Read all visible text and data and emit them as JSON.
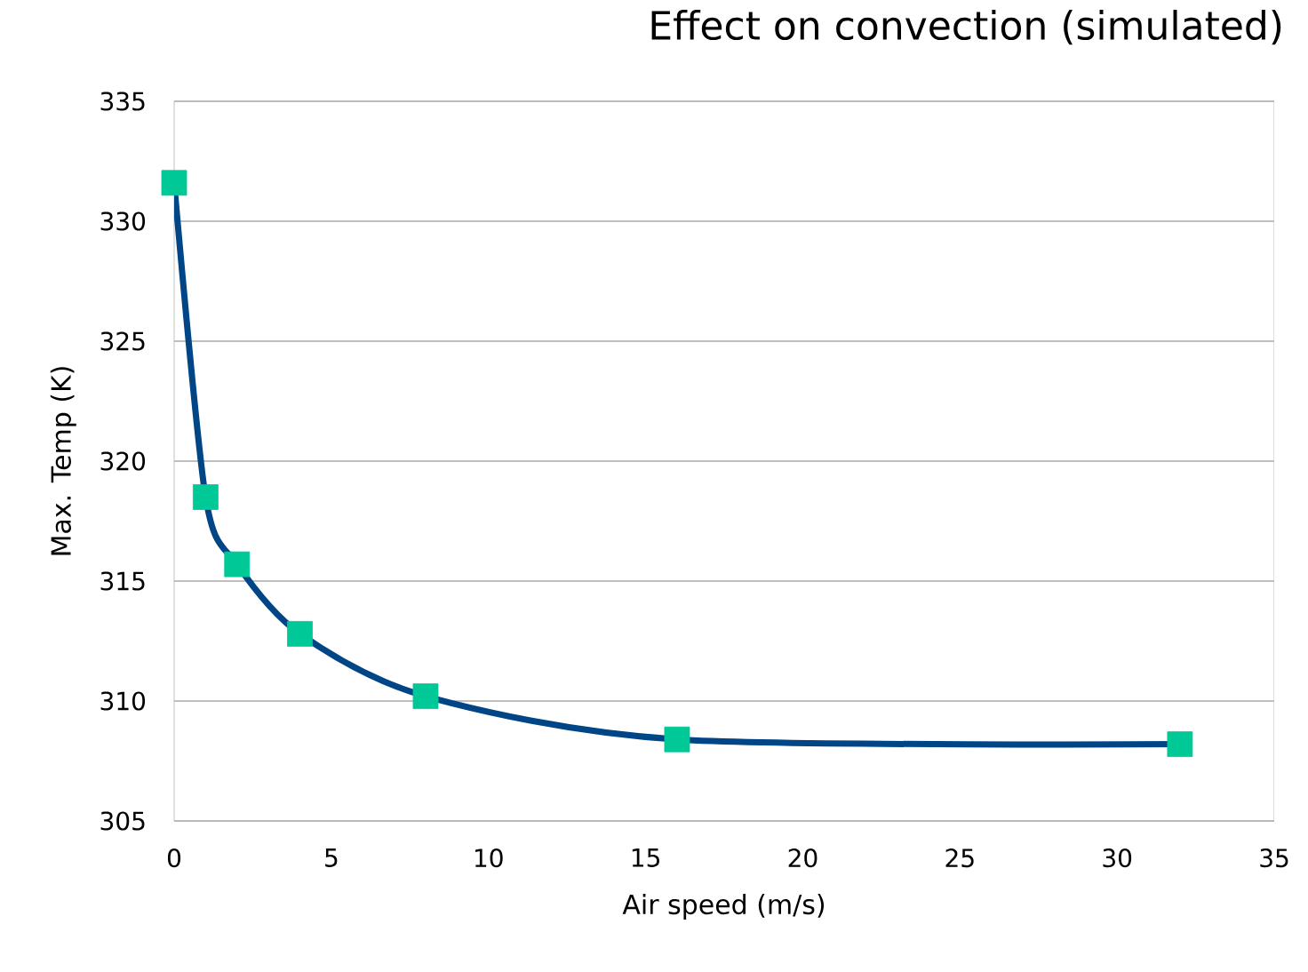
{
  "chart_data": {
    "type": "line",
    "title": "Effect on convection (simulated)",
    "xlabel": "Air speed (m/s)",
    "ylabel": "Max. Temp (K)",
    "x": [
      0,
      1,
      2,
      4,
      8,
      16,
      32
    ],
    "series": [
      {
        "color": "#004586",
        "colors": [
          "#00c896",
          "#00c896",
          "#00c896",
          "#00c896",
          "#00c896",
          "#00c896",
          "#00c896"
        ],
        "values": [
          331.6,
          318.5,
          315.7,
          312.8,
          310.2,
          308.4,
          308.2
        ]
      }
    ],
    "xlim": [
      0,
      35
    ],
    "xticks": [
      0,
      5,
      10,
      15,
      20,
      25,
      30,
      35
    ],
    "ylim": [
      305,
      335
    ],
    "yticks": [
      305,
      310,
      315,
      320,
      325,
      330,
      335
    ],
    "grid": "y",
    "marker": "square",
    "line_style": "solid"
  }
}
